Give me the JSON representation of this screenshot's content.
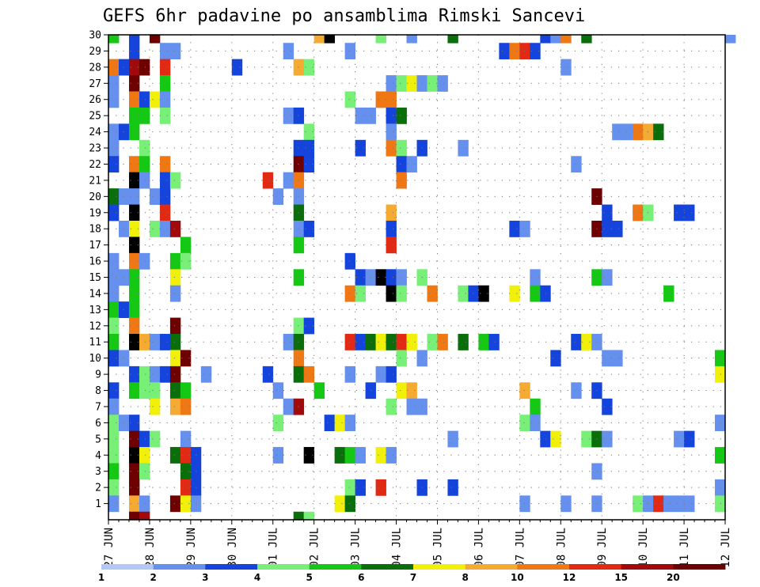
{
  "chart_data": {
    "type": "heatmap",
    "title": "GEFS 6hr padavine po ansamblima Rimski Sancevi",
    "xlabel": "",
    "ylabel": "",
    "x_ticks": [
      "27 JUN",
      "28 JUN",
      "29 JUN",
      "30 JUN",
      "01 JUL",
      "02 JUL",
      "03 JUL",
      "04 JUL",
      "05 JUL",
      "06 JUL",
      "07 JUL",
      "08 JUL",
      "09 JUL",
      "10 JUL",
      "11 JUL",
      "12 JUL"
    ],
    "y_ticks": [
      "1",
      "2",
      "3",
      "4",
      "5",
      "6",
      "7",
      "8",
      "9",
      "10",
      "11",
      "12",
      "13",
      "14",
      "15",
      "16",
      "17",
      "18",
      "19",
      "20",
      "21",
      "22",
      "23",
      "24",
      "25",
      "26",
      "27",
      "28",
      "29",
      "30"
    ],
    "time_step_hours": 6,
    "levels": [
      1,
      2,
      3,
      4,
      5,
      6,
      7,
      8,
      10,
      12,
      15,
      20
    ],
    "colors": [
      "#b4c8f5",
      "#6690ee",
      "#1444dc",
      "#78f078",
      "#14c814",
      "#0a6e0a",
      "#f0f00a",
      "#f5aa32",
      "#f07814",
      "#e02a14",
      "#a00a0a",
      "#6e0000"
    ],
    "colorbar_labels": [
      "1",
      "2",
      "3",
      "4",
      "5",
      "6",
      "7",
      "8",
      "10",
      "12",
      "15",
      "20"
    ],
    "grid": true,
    "cells": [
      [
        30,
        0,
        4
      ],
      [
        30,
        2,
        2
      ],
      [
        30,
        4,
        11
      ],
      [
        30,
        20,
        7
      ],
      [
        30,
        21,
        12
      ],
      [
        30,
        26,
        3
      ],
      [
        30,
        29,
        1
      ],
      [
        30,
        33,
        5
      ],
      [
        30,
        42,
        2
      ],
      [
        30,
        43,
        1
      ],
      [
        30,
        44,
        8
      ],
      [
        30,
        46,
        5
      ],
      [
        30,
        60,
        1
      ],
      [
        29,
        2,
        2
      ],
      [
        29,
        5,
        1
      ],
      [
        29,
        6,
        1
      ],
      [
        29,
        17,
        1
      ],
      [
        29,
        23,
        1
      ],
      [
        29,
        38,
        2
      ],
      [
        29,
        39,
        8
      ],
      [
        29,
        40,
        9
      ],
      [
        29,
        41,
        2
      ],
      [
        28,
        0,
        8
      ],
      [
        28,
        1,
        2
      ],
      [
        28,
        2,
        10
      ],
      [
        28,
        3,
        11
      ],
      [
        28,
        5,
        9
      ],
      [
        28,
        12,
        2
      ],
      [
        28,
        18,
        7
      ],
      [
        28,
        19,
        3
      ],
      [
        28,
        44,
        1
      ],
      [
        27,
        0,
        1
      ],
      [
        27,
        2,
        11
      ],
      [
        27,
        5,
        4
      ],
      [
        27,
        27,
        1
      ],
      [
        27,
        28,
        3
      ],
      [
        27,
        29,
        6
      ],
      [
        27,
        30,
        1
      ],
      [
        27,
        31,
        3
      ],
      [
        27,
        32,
        1
      ],
      [
        26,
        0,
        1
      ],
      [
        26,
        2,
        8
      ],
      [
        26,
        3,
        2
      ],
      [
        26,
        4,
        6
      ],
      [
        26,
        5,
        1
      ],
      [
        26,
        23,
        3
      ],
      [
        26,
        26,
        8
      ],
      [
        26,
        27,
        8
      ],
      [
        25,
        2,
        4
      ],
      [
        25,
        3,
        4
      ],
      [
        25,
        5,
        3
      ],
      [
        25,
        17,
        1
      ],
      [
        25,
        18,
        2
      ],
      [
        25,
        24,
        1
      ],
      [
        25,
        25,
        1
      ],
      [
        25,
        27,
        2
      ],
      [
        25,
        28,
        5
      ],
      [
        24,
        0,
        1
      ],
      [
        24,
        1,
        2
      ],
      [
        24,
        2,
        4
      ],
      [
        24,
        19,
        3
      ],
      [
        24,
        27,
        1
      ],
      [
        24,
        49,
        1
      ],
      [
        24,
        50,
        1
      ],
      [
        24,
        51,
        8
      ],
      [
        24,
        52,
        7
      ],
      [
        24,
        53,
        5
      ],
      [
        23,
        0,
        1
      ],
      [
        23,
        3,
        3
      ],
      [
        23,
        18,
        2
      ],
      [
        23,
        19,
        2
      ],
      [
        23,
        24,
        2
      ],
      [
        23,
        27,
        8
      ],
      [
        23,
        28,
        3
      ],
      [
        23,
        30,
        2
      ],
      [
        23,
        34,
        1
      ],
      [
        22,
        0,
        2
      ],
      [
        22,
        2,
        8
      ],
      [
        22,
        3,
        4
      ],
      [
        22,
        5,
        8
      ],
      [
        22,
        18,
        11
      ],
      [
        22,
        19,
        2
      ],
      [
        22,
        28,
        2
      ],
      [
        22,
        29,
        1
      ],
      [
        22,
        45,
        1
      ],
      [
        21,
        2,
        12
      ],
      [
        21,
        3,
        1
      ],
      [
        21,
        5,
        2
      ],
      [
        21,
        6,
        3
      ],
      [
        21,
        15,
        9
      ],
      [
        21,
        17,
        1
      ],
      [
        21,
        18,
        8
      ],
      [
        21,
        28,
        8
      ],
      [
        20,
        0,
        5
      ],
      [
        20,
        1,
        1
      ],
      [
        20,
        2,
        1
      ],
      [
        20,
        4,
        1
      ],
      [
        20,
        5,
        2
      ],
      [
        20,
        16,
        1
      ],
      [
        20,
        18,
        1
      ],
      [
        20,
        47,
        11
      ],
      [
        19,
        0,
        2
      ],
      [
        19,
        2,
        12
      ],
      [
        19,
        5,
        9
      ],
      [
        19,
        18,
        5
      ],
      [
        19,
        27,
        7
      ],
      [
        19,
        48,
        2
      ],
      [
        19,
        51,
        8
      ],
      [
        19,
        52,
        3
      ],
      [
        19,
        55,
        2
      ],
      [
        19,
        56,
        2
      ],
      [
        18,
        1,
        1
      ],
      [
        18,
        2,
        6
      ],
      [
        18,
        4,
        3
      ],
      [
        18,
        5,
        1
      ],
      [
        18,
        6,
        10
      ],
      [
        18,
        18,
        1
      ],
      [
        18,
        19,
        2
      ],
      [
        18,
        27,
        2
      ],
      [
        18,
        39,
        2
      ],
      [
        18,
        40,
        1
      ],
      [
        18,
        47,
        11
      ],
      [
        18,
        48,
        2
      ],
      [
        18,
        49,
        2
      ],
      [
        17,
        2,
        12
      ],
      [
        17,
        7,
        4
      ],
      [
        17,
        18,
        4
      ],
      [
        17,
        27,
        9
      ],
      [
        16,
        0,
        1
      ],
      [
        16,
        2,
        8
      ],
      [
        16,
        3,
        1
      ],
      [
        16,
        6,
        4
      ],
      [
        16,
        7,
        3
      ],
      [
        16,
        23,
        2
      ],
      [
        15,
        0,
        1
      ],
      [
        15,
        1,
        1
      ],
      [
        15,
        2,
        4
      ],
      [
        15,
        6,
        6
      ],
      [
        15,
        18,
        4
      ],
      [
        15,
        24,
        2
      ],
      [
        15,
        25,
        1
      ],
      [
        15,
        26,
        12
      ],
      [
        15,
        27,
        2
      ],
      [
        15,
        28,
        1
      ],
      [
        15,
        30,
        3
      ],
      [
        15,
        41,
        1
      ],
      [
        15,
        47,
        4
      ],
      [
        15,
        48,
        1
      ],
      [
        14,
        0,
        1
      ],
      [
        14,
        2,
        4
      ],
      [
        14,
        6,
        1
      ],
      [
        14,
        23,
        8
      ],
      [
        14,
        24,
        3
      ],
      [
        14,
        27,
        12
      ],
      [
        14,
        28,
        3
      ],
      [
        14,
        31,
        8
      ],
      [
        14,
        34,
        3
      ],
      [
        14,
        35,
        2
      ],
      [
        14,
        36,
        12
      ],
      [
        14,
        39,
        6
      ],
      [
        14,
        41,
        4
      ],
      [
        14,
        42,
        2
      ],
      [
        14,
        54,
        4
      ],
      [
        13,
        0,
        4
      ],
      [
        13,
        1,
        2
      ],
      [
        13,
        2,
        4
      ],
      [
        12,
        0,
        3
      ],
      [
        12,
        2,
        8
      ],
      [
        12,
        6,
        11
      ],
      [
        12,
        18,
        3
      ],
      [
        12,
        19,
        2
      ],
      [
        11,
        0,
        4
      ],
      [
        11,
        2,
        12
      ],
      [
        11,
        3,
        7
      ],
      [
        11,
        4,
        1
      ],
      [
        11,
        5,
        2
      ],
      [
        11,
        6,
        5
      ],
      [
        11,
        17,
        1
      ],
      [
        11,
        18,
        5
      ],
      [
        11,
        23,
        9
      ],
      [
        11,
        24,
        2
      ],
      [
        11,
        25,
        5
      ],
      [
        11,
        26,
        6
      ],
      [
        11,
        27,
        5
      ],
      [
        11,
        28,
        9
      ],
      [
        11,
        29,
        6
      ],
      [
        11,
        31,
        3
      ],
      [
        11,
        32,
        8
      ],
      [
        11,
        34,
        5
      ],
      [
        11,
        36,
        4
      ],
      [
        11,
        37,
        2
      ],
      [
        11,
        45,
        2
      ],
      [
        11,
        46,
        6
      ],
      [
        11,
        47,
        1
      ],
      [
        10,
        0,
        2
      ],
      [
        10,
        1,
        1
      ],
      [
        10,
        6,
        6
      ],
      [
        10,
        7,
        11
      ],
      [
        10,
        18,
        8
      ],
      [
        10,
        28,
        3
      ],
      [
        10,
        30,
        1
      ],
      [
        10,
        43,
        2
      ],
      [
        10,
        48,
        1
      ],
      [
        10,
        49,
        1
      ],
      [
        10,
        59,
        4
      ],
      [
        9,
        2,
        2
      ],
      [
        9,
        3,
        3
      ],
      [
        9,
        4,
        1
      ],
      [
        9,
        5,
        2
      ],
      [
        9,
        6,
        11
      ],
      [
        9,
        9,
        1
      ],
      [
        9,
        15,
        2
      ],
      [
        9,
        18,
        5
      ],
      [
        9,
        19,
        8
      ],
      [
        9,
        23,
        1
      ],
      [
        9,
        26,
        1
      ],
      [
        9,
        27,
        2
      ],
      [
        9,
        59,
        6
      ],
      [
        8,
        0,
        2
      ],
      [
        8,
        2,
        4
      ],
      [
        8,
        3,
        3
      ],
      [
        8,
        4,
        3
      ],
      [
        8,
        6,
        5
      ],
      [
        8,
        7,
        4
      ],
      [
        8,
        16,
        1
      ],
      [
        8,
        20,
        4
      ],
      [
        8,
        25,
        2
      ],
      [
        8,
        28,
        6
      ],
      [
        8,
        29,
        7
      ],
      [
        8,
        40,
        7
      ],
      [
        8,
        45,
        1
      ],
      [
        8,
        47,
        2
      ],
      [
        7,
        0,
        1
      ],
      [
        7,
        4,
        6
      ],
      [
        7,
        6,
        7
      ],
      [
        7,
        7,
        8
      ],
      [
        7,
        17,
        1
      ],
      [
        7,
        18,
        10
      ],
      [
        7,
        27,
        3
      ],
      [
        7,
        29,
        1
      ],
      [
        7,
        30,
        1
      ],
      [
        7,
        41,
        4
      ],
      [
        7,
        48,
        2
      ],
      [
        6,
        0,
        3
      ],
      [
        6,
        1,
        1
      ],
      [
        6,
        2,
        2
      ],
      [
        6,
        16,
        3
      ],
      [
        6,
        21,
        2
      ],
      [
        6,
        22,
        6
      ],
      [
        6,
        23,
        1
      ],
      [
        6,
        40,
        3
      ],
      [
        6,
        41,
        1
      ],
      [
        6,
        59,
        1
      ],
      [
        5,
        0,
        3
      ],
      [
        5,
        2,
        11
      ],
      [
        5,
        3,
        2
      ],
      [
        5,
        4,
        3
      ],
      [
        5,
        7,
        1
      ],
      [
        5,
        33,
        1
      ],
      [
        5,
        42,
        2
      ],
      [
        5,
        43,
        6
      ],
      [
        5,
        46,
        3
      ],
      [
        5,
        47,
        5
      ],
      [
        5,
        48,
        1
      ],
      [
        5,
        55,
        1
      ],
      [
        5,
        56,
        2
      ],
      [
        4,
        0,
        3
      ],
      [
        4,
        2,
        12
      ],
      [
        4,
        3,
        6
      ],
      [
        4,
        6,
        5
      ],
      [
        4,
        7,
        9
      ],
      [
        4,
        8,
        2
      ],
      [
        4,
        16,
        1
      ],
      [
        4,
        19,
        12
      ],
      [
        4,
        22,
        5
      ],
      [
        4,
        23,
        4
      ],
      [
        4,
        24,
        1
      ],
      [
        4,
        26,
        6
      ],
      [
        4,
        27,
        1
      ],
      [
        4,
        59,
        4
      ],
      [
        3,
        0,
        4
      ],
      [
        3,
        2,
        11
      ],
      [
        3,
        3,
        3
      ],
      [
        3,
        7,
        5
      ],
      [
        3,
        8,
        2
      ],
      [
        3,
        47,
        1
      ],
      [
        2,
        0,
        3
      ],
      [
        2,
        2,
        11
      ],
      [
        2,
        7,
        9
      ],
      [
        2,
        8,
        2
      ],
      [
        2,
        23,
        3
      ],
      [
        2,
        24,
        2
      ],
      [
        2,
        26,
        9
      ],
      [
        2,
        30,
        2
      ],
      [
        2,
        33,
        2
      ],
      [
        2,
        59,
        1
      ],
      [
        1,
        0,
        1
      ],
      [
        1,
        2,
        7
      ],
      [
        1,
        3,
        1
      ],
      [
        1,
        6,
        11
      ],
      [
        1,
        7,
        6
      ],
      [
        1,
        8,
        1
      ],
      [
        1,
        22,
        6
      ],
      [
        1,
        23,
        5
      ],
      [
        1,
        40,
        1
      ],
      [
        1,
        44,
        1
      ],
      [
        1,
        47,
        1
      ],
      [
        1,
        51,
        3
      ],
      [
        1,
        52,
        1
      ],
      [
        1,
        53,
        9
      ],
      [
        1,
        54,
        1
      ],
      [
        1,
        55,
        1
      ],
      [
        1,
        56,
        1
      ],
      [
        1,
        59,
        3
      ],
      [
        0,
        2,
        11
      ],
      [
        0,
        3,
        10
      ],
      [
        0,
        18,
        5
      ],
      [
        0,
        19,
        3
      ]
    ]
  }
}
